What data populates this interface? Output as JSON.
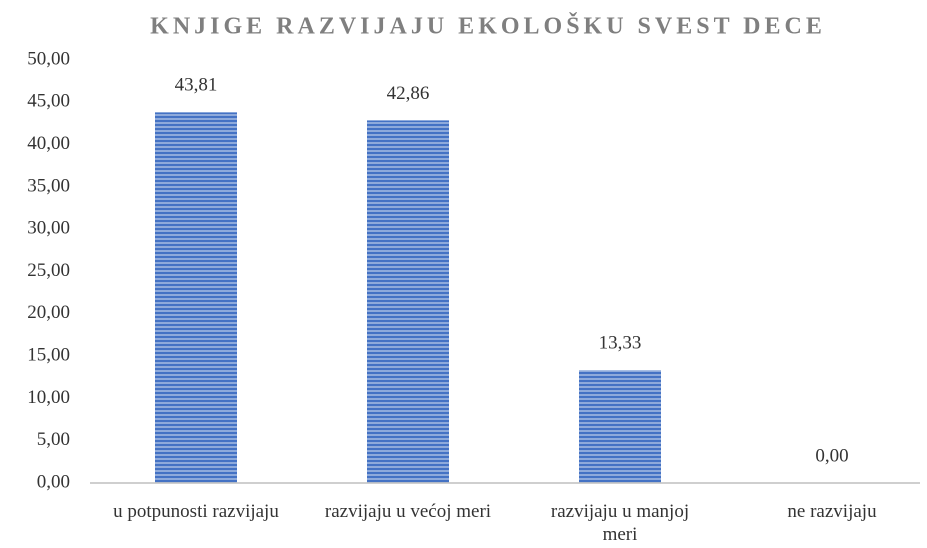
{
  "chart_data": {
    "type": "bar",
    "title": "KNJIGE RAZVIJAJU EKOLOŠKU SVEST DECE",
    "categories": [
      "u potpunosti razvijaju",
      "razvijaju u većoj meri",
      "razvijaju u manjoj meri",
      "ne razvijaju"
    ],
    "values": [
      43.81,
      42.86,
      13.33,
      0
    ],
    "value_labels": [
      "43,81",
      "42,86",
      "13,33",
      "0,00"
    ],
    "color": "#4472c4",
    "ylim": [
      0,
      50
    ],
    "yticks": [
      {
        "value": 0,
        "label": "0,00"
      },
      {
        "value": 5,
        "label": "5,00"
      },
      {
        "value": 10,
        "label": "10,00"
      },
      {
        "value": 15,
        "label": "15,00"
      },
      {
        "value": 20,
        "label": "20,00"
      },
      {
        "value": 25,
        "label": "25,00"
      },
      {
        "value": 30,
        "label": "30,00"
      },
      {
        "value": 35,
        "label": "35,00"
      },
      {
        "value": 40,
        "label": "40,00"
      },
      {
        "value": 45,
        "label": "45,00"
      },
      {
        "value": 50,
        "label": "50,00"
      }
    ],
    "grid": false
  }
}
